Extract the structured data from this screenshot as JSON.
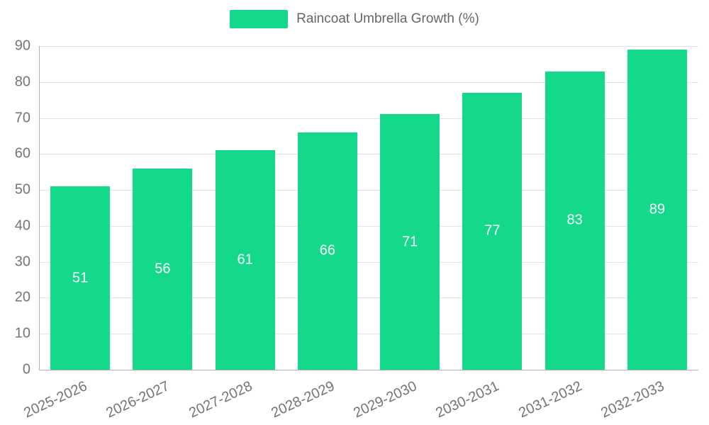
{
  "chart_data": {
    "type": "bar",
    "title": "Raincoat Umbrella Growth (%)",
    "categories": [
      "2025-2026",
      "2026-2027",
      "2027-2028",
      "2028-2029",
      "2029-2030",
      "2030-2031",
      "2031-2032",
      "2032-2033"
    ],
    "values": [
      51,
      56,
      61,
      66,
      71,
      77,
      83,
      89
    ],
    "xlabel": "",
    "ylabel": "",
    "ylim": [
      0,
      90
    ],
    "ytick_step": 10,
    "grid": "horizontal",
    "legend_position": "top",
    "value_labels": "inside-center"
  },
  "colors": {
    "bar": "#15d98a",
    "grid": "#e3e3e3",
    "axis": "#b0b0b0",
    "tick_text": "#757575",
    "value_text": "#ffffff",
    "legend_text": "#666666",
    "background": "#ffffff"
  }
}
